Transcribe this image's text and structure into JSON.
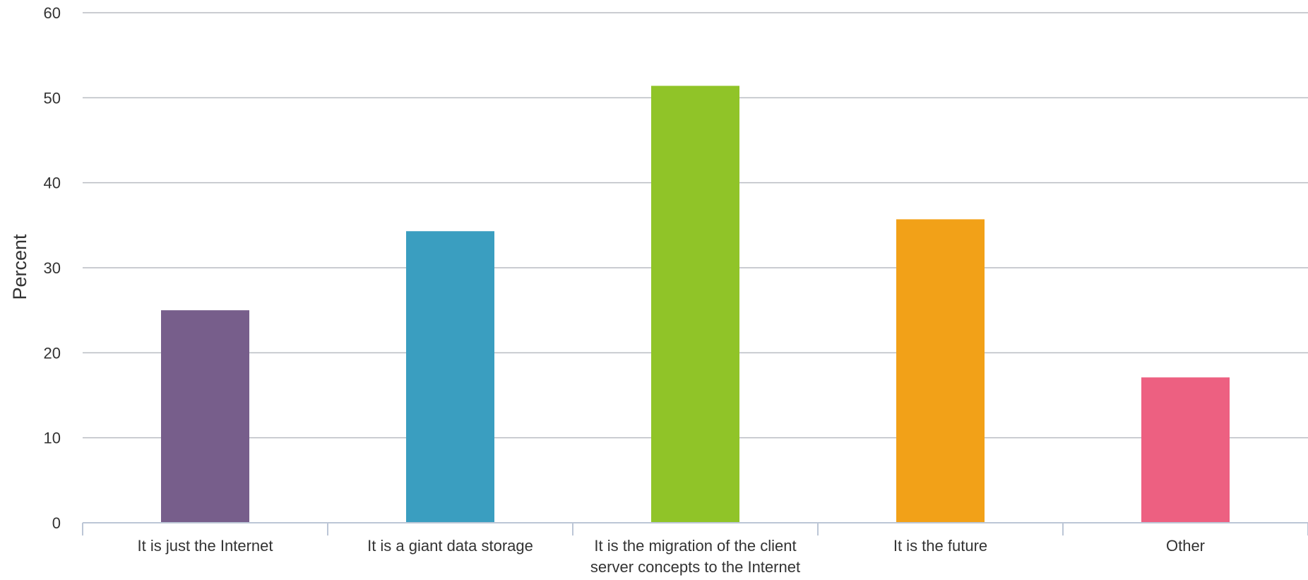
{
  "chart_data": {
    "type": "bar",
    "title": "",
    "xlabel": "",
    "ylabel": "Percent",
    "ylim": [
      0,
      60
    ],
    "yticks": [
      0,
      10,
      20,
      30,
      40,
      50,
      60
    ],
    "grid": true,
    "legend": "none",
    "categories": [
      [
        "It is just the Internet"
      ],
      [
        "It is a giant data storage"
      ],
      [
        "It is the migration of the client",
        "server concepts to the Internet"
      ],
      [
        "It is the future"
      ],
      [
        "Other"
      ]
    ],
    "values": [
      25.0,
      34.3,
      51.4,
      35.7,
      17.1
    ],
    "colors": [
      "#775e8b",
      "#3a9ec0",
      "#90c428",
      "#f2a118",
      "#ed6081"
    ]
  }
}
